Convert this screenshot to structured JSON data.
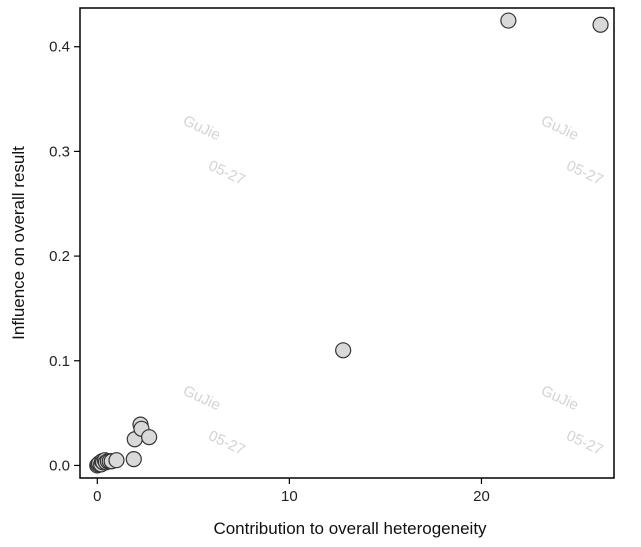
{
  "chart_data": {
    "type": "scatter",
    "xlabel": "Contribution to overall heterogeneity",
    "ylabel": "Influence on overall result",
    "xlim": [
      -0.9,
      26.9
    ],
    "ylim": [
      -0.012,
      0.437
    ],
    "x_ticks": [
      0,
      10,
      20
    ],
    "x_tick_labels": [
      "0",
      "10",
      "20"
    ],
    "y_ticks": [
      0.0,
      0.1,
      0.2,
      0.3,
      0.4
    ],
    "y_tick_labels": [
      "0.0",
      "0.1",
      "0.2",
      "0.3",
      "0.4"
    ],
    "grid": false,
    "marker_fill": "#d9d9d9",
    "marker_stroke": "#333333",
    "points": [
      {
        "x": 0.0,
        "y": 0.0
      },
      {
        "x": 0.05,
        "y": 0.001
      },
      {
        "x": 0.1,
        "y": 0.002
      },
      {
        "x": 0.2,
        "y": 0.001
      },
      {
        "x": 0.25,
        "y": 0.004
      },
      {
        "x": 0.3,
        "y": 0.003
      },
      {
        "x": 0.4,
        "y": 0.005
      },
      {
        "x": 0.45,
        "y": 0.003
      },
      {
        "x": 0.55,
        "y": 0.004
      },
      {
        "x": 0.65,
        "y": 0.004
      },
      {
        "x": 0.75,
        "y": 0.004
      },
      {
        "x": 1.0,
        "y": 0.005
      },
      {
        "x": 1.9,
        "y": 0.006
      },
      {
        "x": 1.95,
        "y": 0.025
      },
      {
        "x": 2.25,
        "y": 0.039
      },
      {
        "x": 2.3,
        "y": 0.035
      },
      {
        "x": 2.7,
        "y": 0.027
      },
      {
        "x": 12.8,
        "y": 0.11
      },
      {
        "x": 21.4,
        "y": 0.425
      },
      {
        "x": 26.2,
        "y": 0.421
      }
    ]
  },
  "watermarks": [
    {
      "name": "GuJie",
      "date": "05-27"
    },
    {
      "name": "GuJie",
      "date": "05-27"
    },
    {
      "name": "GuJie",
      "date": "05-27"
    },
    {
      "name": "GuJie",
      "date": "05-27"
    }
  ]
}
